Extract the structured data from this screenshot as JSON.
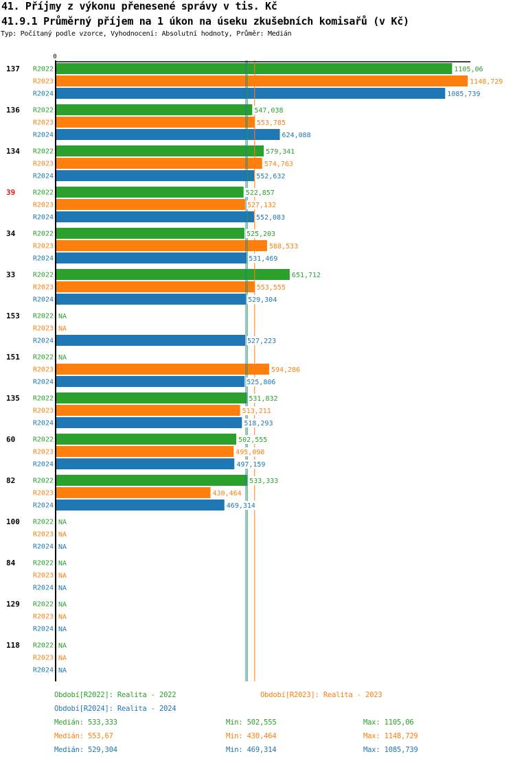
{
  "header": {
    "title": "41. Příjmy z výkonu přenesené správy v tis. Kč",
    "subtitle": "41.9.1 Průměrný příjem na 1 úkon na úseku zkušebních komisařů (v Kč)",
    "meta": "Typ: Počítaný podle vzorce, Vyhodnocení: Absolutní hodnoty, Průměr: Medián"
  },
  "colors": {
    "R2022": "#2ca02c",
    "R2023": "#ff7f0e",
    "R2024": "#1f77b4",
    "highlight_group": "#e8141c",
    "axis": "#000000"
  },
  "chart_data": {
    "type": "bar",
    "orientation": "horizontal",
    "title": "41.9.1 Průměrný příjem na 1 úkon na úseku zkušebních komisařů (v Kč)",
    "xlabel": "",
    "ylabel": "",
    "x_tick_labels": [
      "0"
    ],
    "xlim": [
      0,
      1158
    ],
    "grid": false,
    "na_label": "NA",
    "series_names": [
      "R2022",
      "R2023",
      "R2024"
    ],
    "categories": [
      "137",
      "136",
      "134",
      "39",
      "34",
      "33",
      "153",
      "151",
      "135",
      "60",
      "82",
      "100",
      "84",
      "129",
      "118"
    ],
    "highlighted_categories": [
      "39"
    ],
    "series": [
      {
        "name": "R2022",
        "values": [
          1105.06,
          547.038,
          579.341,
          522.857,
          525.203,
          651.712,
          null,
          null,
          531.832,
          502.555,
          533.333,
          null,
          null,
          null,
          null
        ],
        "labels": [
          "1105,06",
          "547,038",
          "579,341",
          "522,857",
          "525,203",
          "651,712",
          "NA",
          "NA",
          "531,832",
          "502,555",
          "533,333",
          "NA",
          "NA",
          "NA",
          "NA"
        ]
      },
      {
        "name": "R2023",
        "values": [
          1148.729,
          553.785,
          574.763,
          527.132,
          588.533,
          553.555,
          null,
          594.286,
          513.211,
          495.098,
          430.464,
          null,
          null,
          null,
          null
        ],
        "labels": [
          "1148,729",
          "553,785",
          "574,763",
          "527,132",
          "588,533",
          "553,555",
          "NA",
          "594,286",
          "513,211",
          "495,098",
          "430,464",
          "NA",
          "NA",
          "NA",
          "NA"
        ]
      },
      {
        "name": "R2024",
        "values": [
          1085.739,
          624.088,
          552.632,
          552.083,
          531.469,
          529.304,
          527.223,
          525.806,
          518.293,
          497.159,
          469.314,
          null,
          null,
          null,
          null
        ],
        "labels": [
          "1085,739",
          "624,088",
          "552,632",
          "552,083",
          "531,469",
          "529,304",
          "527,223",
          "525,806",
          "518,293",
          "497,159",
          "469,314",
          "NA",
          "NA",
          "NA",
          "NA"
        ]
      }
    ],
    "reference_lines": [
      {
        "series": "R2022",
        "type": "median",
        "value": 533.333
      },
      {
        "series": "R2023",
        "type": "median",
        "value": 553.67
      },
      {
        "series": "R2024",
        "type": "median",
        "value": 529.304
      }
    ],
    "legend": {
      "periods": [
        {
          "series": "R2022",
          "text": "Období[R2022]: Realita - 2022"
        },
        {
          "series": "R2023",
          "text": "Období[R2023]: Realita - 2023"
        },
        {
          "series": "R2024",
          "text": "Období[R2024]: Realita - 2024"
        }
      ],
      "stats": [
        {
          "series": "R2022",
          "median": "Medián: 533,333",
          "min": "Min: 502,555",
          "max": "Max: 1105,06"
        },
        {
          "series": "R2023",
          "median": "Medián: 553,67",
          "min": "Min: 430,464",
          "max": "Max: 1148,729"
        },
        {
          "series": "R2024",
          "median": "Medián: 529,304",
          "min": "Min: 469,314",
          "max": "Max: 1085,739"
        }
      ],
      "placement": "bottom"
    }
  }
}
